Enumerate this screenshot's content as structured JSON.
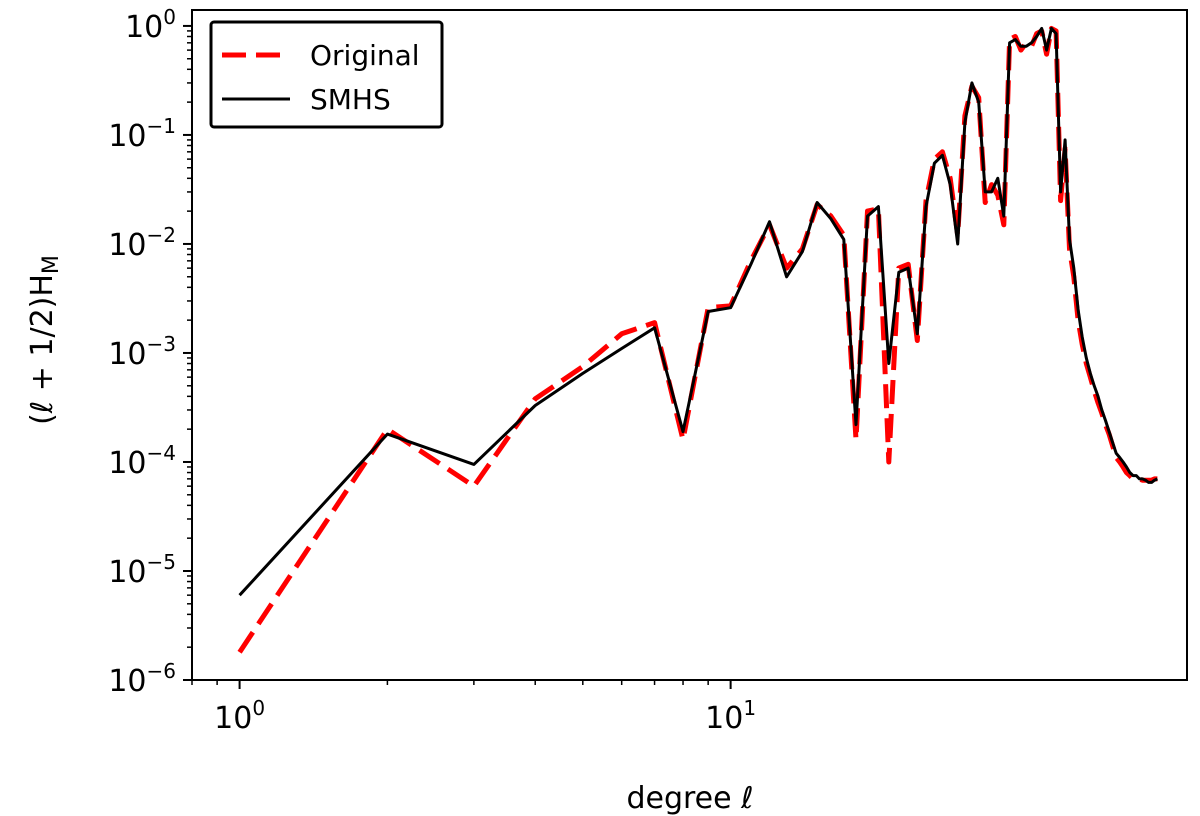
{
  "chart_data": {
    "type": "line",
    "xscale": "log",
    "yscale": "log",
    "xlim": [
      0.8,
      85
    ],
    "ylim": [
      1e-06,
      1.4
    ],
    "xlabel": "degree ℓ",
    "ylabel": "(ℓ + 1/2)H",
    "ylabel_subscript": "M",
    "grid": false,
    "legend_position": "top-left",
    "x_ticks": [
      {
        "base": "10",
        "exp": "0",
        "value": 1
      },
      {
        "base": "10",
        "exp": "1",
        "value": 10
      }
    ],
    "y_ticks": [
      {
        "base": "10",
        "exp": "0",
        "value": 1
      },
      {
        "base": "10",
        "exp": "−1",
        "value": 0.1
      },
      {
        "base": "10",
        "exp": "−2",
        "value": 0.01
      },
      {
        "base": "10",
        "exp": "−3",
        "value": 0.001
      },
      {
        "base": "10",
        "exp": "−4",
        "value": 0.0001
      },
      {
        "base": "10",
        "exp": "−5",
        "value": 1e-05
      },
      {
        "base": "10",
        "exp": "−6",
        "value": 1e-06
      }
    ],
    "series": [
      {
        "name": "Original",
        "color": "#ff0000",
        "style": "dashed",
        "x": [
          1,
          2,
          3,
          4,
          5,
          6,
          7,
          8,
          9,
          10,
          11,
          12,
          13,
          14,
          15,
          16,
          17,
          18,
          19,
          20,
          21,
          22,
          23,
          24,
          25,
          26,
          27,
          28,
          29,
          30,
          31,
          32,
          33,
          34,
          35,
          36,
          37,
          38,
          39,
          40,
          41,
          42,
          43,
          44,
          45,
          46,
          47,
          48,
          49,
          50,
          51,
          52,
          53,
          54,
          55,
          56,
          57,
          58,
          59,
          60,
          61,
          62,
          63,
          64,
          65,
          66,
          67,
          68,
          69,
          70,
          71,
          72,
          73,
          74
        ],
        "y": [
          1.8e-06,
          0.0002,
          6e-05,
          0.00038,
          0.00075,
          0.0015,
          0.0019,
          0.00016,
          0.0026,
          0.0027,
          0.007,
          0.015,
          0.006,
          0.009,
          0.023,
          0.018,
          0.012,
          0.00016,
          0.02,
          0.021,
          0.0001,
          0.006,
          0.0065,
          0.0013,
          0.025,
          0.06,
          0.07,
          0.04,
          0.012,
          0.15,
          0.28,
          0.22,
          0.024,
          0.035,
          0.028,
          0.015,
          0.75,
          0.8,
          0.6,
          0.7,
          0.65,
          0.85,
          0.9,
          0.55,
          0.95,
          0.9,
          0.025,
          0.075,
          0.009,
          0.005,
          0.002,
          0.0012,
          0.0008,
          0.0006,
          0.00045,
          0.00035,
          0.00028,
          0.00022,
          0.00018,
          0.00014,
          0.00011,
          0.0001,
          9e-05,
          8e-05,
          7.5e-05,
          7e-05,
          7e-05,
          7e-05,
          6.8e-05,
          6.8e-05,
          6.8e-05,
          6.8e-05,
          7e-05,
          7e-05
        ]
      },
      {
        "name": "SMHS",
        "color": "#000000",
        "style": "solid",
        "x": [
          1,
          2,
          3,
          4,
          5,
          6,
          7,
          8,
          9,
          10,
          11,
          12,
          13,
          14,
          15,
          16,
          17,
          18,
          19,
          20,
          21,
          22,
          23,
          24,
          25,
          26,
          27,
          28,
          29,
          30,
          31,
          32,
          33,
          34,
          35,
          36,
          37,
          38,
          39,
          40,
          41,
          42,
          43,
          44,
          45,
          46,
          47,
          48,
          49,
          50,
          51,
          52,
          53,
          54,
          55,
          56,
          57,
          58,
          59,
          60,
          61,
          62,
          63,
          64,
          65,
          66,
          67,
          68,
          69,
          70,
          71,
          72,
          73,
          74
        ],
        "y": [
          6e-06,
          0.00018,
          9.5e-05,
          0.00033,
          0.00065,
          0.0011,
          0.0017,
          0.00019,
          0.0024,
          0.0026,
          0.0065,
          0.016,
          0.005,
          0.0085,
          0.024,
          0.017,
          0.011,
          0.00022,
          0.018,
          0.022,
          0.0008,
          0.0055,
          0.006,
          0.0015,
          0.022,
          0.055,
          0.065,
          0.035,
          0.01,
          0.13,
          0.3,
          0.2,
          0.03,
          0.03,
          0.04,
          0.018,
          0.7,
          0.75,
          0.65,
          0.65,
          0.7,
          0.8,
          0.95,
          0.6,
          0.95,
          0.85,
          0.03,
          0.09,
          0.011,
          0.006,
          0.0025,
          0.0014,
          0.0009,
          0.00065,
          0.0005,
          0.0004,
          0.0003,
          0.00024,
          0.00019,
          0.00015,
          0.00012,
          0.00011,
          0.0001,
          9e-05,
          8e-05,
          7.5e-05,
          7.5e-05,
          7e-05,
          7e-05,
          6.8e-05,
          6.5e-05,
          6.5e-05,
          6.8e-05,
          7e-05
        ]
      }
    ]
  }
}
